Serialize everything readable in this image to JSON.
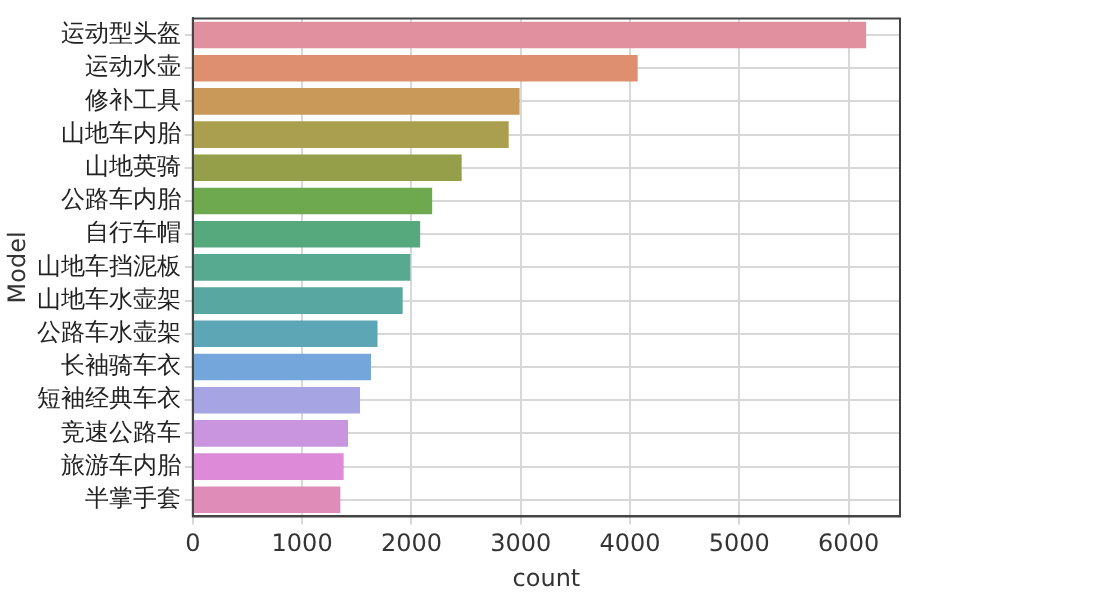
{
  "chart_data": {
    "type": "bar",
    "orientation": "horizontal",
    "xlabel": "count",
    "ylabel": "Model",
    "categories": [
      "运动型头盔",
      "运动水壶",
      "修补工具",
      "山地车内胎",
      "山地英骑",
      "公路车内胎",
      "自行车帽",
      "山地车挡泥板",
      "山地车水壶架",
      "公路车水壶架",
      "长袖骑车衣",
      "短袖经典车衣",
      "竞速公路车",
      "旅游车内胎",
      "半掌手套"
    ],
    "values": [
      6160,
      4070,
      2990,
      2890,
      2460,
      2190,
      2080,
      1990,
      1920,
      1690,
      1630,
      1530,
      1420,
      1380,
      1350
    ],
    "colors": [
      "#e0909f",
      "#dd8f6f",
      "#c9995a",
      "#aa9f4f",
      "#959f4a",
      "#6fa94f",
      "#56a97c",
      "#57a98f",
      "#59a7a1",
      "#5ca6b5",
      "#74a6dc",
      "#a7a4e4",
      "#c995df",
      "#dd8ad8",
      "#e08cb9"
    ],
    "xlim": [
      0,
      6470
    ],
    "xticks": [
      0,
      1000,
      2000,
      3000,
      4000,
      5000,
      6000
    ],
    "grid": true
  }
}
